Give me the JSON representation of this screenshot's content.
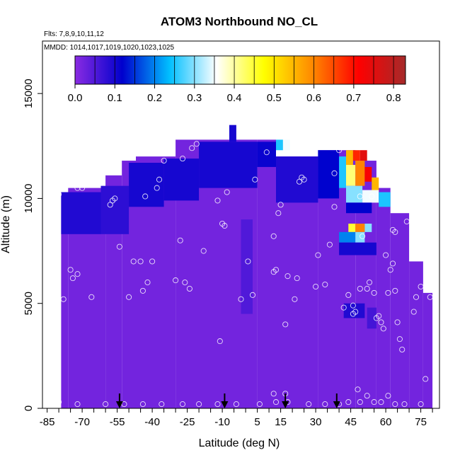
{
  "chart_data": {
    "type": "heatmap",
    "title": "ATOM3 Northbound NO_CL",
    "flights_label": "Flts: 7,8,9,10,11,12",
    "dates_label": "MMDD: 1014,1017,1019,1020,1023,1025",
    "xlabel": "Latitude (deg N)",
    "ylabel": "Altitude (m)",
    "x_ticks": [
      "-85",
      "-70",
      "-55",
      "-40",
      "-25",
      "-10",
      "5",
      "15",
      "30",
      "45",
      "60",
      "75"
    ],
    "y_ticks": [
      "0",
      "5000",
      "10000",
      "15000"
    ],
    "xlim": [
      -87,
      83
    ],
    "ylim": [
      0,
      17500
    ],
    "colorbar": {
      "ticks": [
        "0.0",
        "0.1",
        "0.2",
        "0.3",
        "0.4",
        "0.5",
        "0.6",
        "0.7",
        "0.8"
      ],
      "range": [
        0,
        0.83
      ],
      "colors": [
        "#8a2be2",
        "#0000cd",
        "#00bfff",
        "#ffffff",
        "#ffff00",
        "#ff8c00",
        "#ff0000",
        "#a52a2a"
      ]
    },
    "arrow_latitudes": [
      -54,
      -9,
      17,
      39
    ],
    "background_value": 0.02,
    "profile_columns": [
      {
        "lat": [
          -79,
          -76
        ],
        "alt_top": 10300
      },
      {
        "lat": [
          -76,
          -60
        ],
        "alt_top": 10500
      },
      {
        "lat": [
          -60,
          -53
        ],
        "alt_top": 11100
      },
      {
        "lat": [
          -53,
          -47
        ],
        "alt_top": 11800
      },
      {
        "lat": [
          -47,
          -30
        ],
        "alt_top": 12000
      },
      {
        "lat": [
          -30,
          5
        ],
        "alt_top": 12800
      },
      {
        "lat": [
          5,
          13
        ],
        "alt_top": 12800
      },
      {
        "lat": [
          13,
          31
        ],
        "alt_top": 12000
      },
      {
        "lat": [
          31,
          47
        ],
        "alt_top": 12300
      },
      {
        "lat": [
          47,
          56
        ],
        "alt_top": 11800
      },
      {
        "lat": [
          56,
          62
        ],
        "alt_top": 10500
      },
      {
        "lat": [
          62,
          70
        ],
        "alt_top": 9300
      },
      {
        "lat": [
          70,
          76
        ],
        "alt_top": 7000
      },
      {
        "lat": [
          76,
          80
        ],
        "alt_top": 5500
      }
    ],
    "enhanced_cells": [
      {
        "lat": [
          -79,
          -62
        ],
        "alt": [
          8300,
          10300
        ],
        "value": 0.09
      },
      {
        "lat": [
          -62,
          -50
        ],
        "alt": [
          8300,
          10600
        ],
        "value": 0.08
      },
      {
        "lat": [
          -50,
          -35
        ],
        "alt": [
          9600,
          11700
        ],
        "value": 0.1
      },
      {
        "lat": [
          -35,
          -20
        ],
        "alt": [
          9900,
          11900
        ],
        "value": 0.1
      },
      {
        "lat": [
          -20,
          5
        ],
        "alt": [
          10500,
          12700
        ],
        "value": 0.1
      },
      {
        "lat": [
          -7,
          -4
        ],
        "alt": [
          12700,
          13500
        ],
        "value": 0.1
      },
      {
        "lat": [
          5,
          13
        ],
        "alt": [
          11500,
          12700
        ],
        "value": 0.11
      },
      {
        "lat": [
          13,
          16
        ],
        "alt": [
          12300,
          12800
        ],
        "value": 0.25
      },
      {
        "lat": [
          16,
          19
        ],
        "alt": [
          12300,
          12800
        ],
        "value": 0.35
      },
      {
        "lat": [
          13,
          31
        ],
        "alt": [
          9800,
          12000
        ],
        "value": 0.09
      },
      {
        "lat": [
          31,
          40
        ],
        "alt": [
          10000,
          12300
        ],
        "value": 0.12
      },
      {
        "lat": [
          40,
          43
        ],
        "alt": [
          10500,
          12000
        ],
        "value": 0.25
      },
      {
        "lat": [
          43,
          46
        ],
        "alt": [
          11600,
          12300
        ],
        "value": 0.55
      },
      {
        "lat": [
          46,
          49
        ],
        "alt": [
          11800,
          12300
        ],
        "value": 0.68
      },
      {
        "lat": [
          49,
          52
        ],
        "alt": [
          11800,
          12300
        ],
        "value": 0.75
      },
      {
        "lat": [
          43,
          47
        ],
        "alt": [
          10600,
          11600
        ],
        "value": 0.42
      },
      {
        "lat": [
          47,
          51
        ],
        "alt": [
          10600,
          11800
        ],
        "value": 0.6
      },
      {
        "lat": [
          51,
          54
        ],
        "alt": [
          10800,
          11500
        ],
        "value": 0.72
      },
      {
        "lat": [
          54,
          57
        ],
        "alt": [
          10300,
          11000
        ],
        "value": 0.55
      },
      {
        "lat": [
          43,
          50
        ],
        "alt": [
          9800,
          10600
        ],
        "value": 0.3
      },
      {
        "lat": [
          50,
          57
        ],
        "alt": [
          9800,
          10400
        ],
        "value": 0.35
      },
      {
        "lat": [
          57,
          62
        ],
        "alt": [
          9600,
          10300
        ],
        "value": 0.25
      },
      {
        "lat": [
          43,
          54
        ],
        "alt": [
          9300,
          9800
        ],
        "value": 0.12
      },
      {
        "lat": [
          44,
          47
        ],
        "alt": [
          8400,
          8800
        ],
        "value": 0.45
      },
      {
        "lat": [
          47,
          51
        ],
        "alt": [
          8400,
          8800
        ],
        "value": 0.6
      },
      {
        "lat": [
          51,
          54
        ],
        "alt": [
          8400,
          8800
        ],
        "value": 0.3
      },
      {
        "lat": [
          40,
          47
        ],
        "alt": [
          7900,
          8400
        ],
        "value": 0.2
      },
      {
        "lat": [
          47,
          51
        ],
        "alt": [
          7900,
          8400
        ],
        "value": 0.3
      },
      {
        "lat": [
          40,
          56
        ],
        "alt": [
          7300,
          7900
        ],
        "value": 0.1
      },
      {
        "lat": [
          -2,
          3
        ],
        "alt": [
          4500,
          9000
        ],
        "value": 0.05
      },
      {
        "lat": [
          42,
          51
        ],
        "alt": [
          4300,
          5000
        ],
        "value": 0.09
      },
      {
        "lat": [
          52,
          56
        ],
        "alt": [
          3800,
          4800
        ],
        "value": 0.06
      }
    ],
    "sample_points": [
      [
        -80,
        10200
      ],
      [
        -82,
        7800
      ],
      [
        -75,
        6600
      ],
      [
        -74,
        6200
      ],
      [
        -72,
        6400
      ],
      [
        -78,
        5200
      ],
      [
        -66,
        5300
      ],
      [
        -72,
        10500
      ],
      [
        -70,
        10500
      ],
      [
        -58,
        9700
      ],
      [
        -57,
        9900
      ],
      [
        -56,
        10000
      ],
      [
        -54,
        7700
      ],
      [
        -50,
        5300
      ],
      [
        -48,
        7000
      ],
      [
        -45,
        7000
      ],
      [
        -44,
        5600
      ],
      [
        -42,
        6000
      ],
      [
        -40,
        7000
      ],
      [
        -43,
        10100
      ],
      [
        -38,
        10500
      ],
      [
        -37,
        10900
      ],
      [
        -35,
        11800
      ],
      [
        -30,
        6100
      ],
      [
        -28,
        8000
      ],
      [
        -27,
        11900
      ],
      [
        -23,
        12400
      ],
      [
        -21,
        12600
      ],
      [
        -26,
        6000
      ],
      [
        -24,
        5700
      ],
      [
        -18,
        7500
      ],
      [
        -10,
        8800
      ],
      [
        -9,
        8700
      ],
      [
        -8,
        10300
      ],
      [
        -11,
        3200
      ],
      [
        -12,
        9900
      ],
      [
        -2,
        5200
      ],
      [
        1,
        7000
      ],
      [
        3,
        5400
      ],
      [
        4,
        10900
      ],
      [
        9,
        12200
      ],
      [
        12,
        8200
      ],
      [
        14,
        9300
      ],
      [
        15,
        9700
      ],
      [
        13,
        6600
      ],
      [
        12,
        6500
      ],
      [
        17,
        4000
      ],
      [
        18,
        6300
      ],
      [
        20,
        13200
      ],
      [
        22,
        6200
      ],
      [
        21,
        5200
      ],
      [
        24,
        11000
      ],
      [
        25,
        10900
      ],
      [
        23,
        10800
      ],
      [
        30,
        5800
      ],
      [
        31,
        7300
      ],
      [
        34,
        5900
      ],
      [
        36,
        7800
      ],
      [
        38,
        9600
      ],
      [
        38,
        11200
      ],
      [
        40,
        12300
      ],
      [
        42,
        4800
      ],
      [
        44,
        5400
      ],
      [
        46,
        4500
      ],
      [
        47,
        4600
      ],
      [
        49,
        5700
      ],
      [
        49,
        10100
      ],
      [
        52,
        5700
      ],
      [
        53,
        6000
      ],
      [
        55,
        5500
      ],
      [
        56,
        4300
      ],
      [
        57,
        4400
      ],
      [
        58,
        4100
      ],
      [
        59,
        3800
      ],
      [
        60,
        7300
      ],
      [
        62,
        6600
      ],
      [
        63,
        6900
      ],
      [
        61,
        5500
      ],
      [
        64,
        5600
      ],
      [
        65,
        4100
      ],
      [
        66,
        3300
      ],
      [
        67,
        2800
      ],
      [
        63,
        8500
      ],
      [
        64,
        8400
      ],
      [
        69,
        8900
      ],
      [
        72,
        4600
      ],
      [
        73,
        5300
      ],
      [
        75,
        5800
      ],
      [
        77,
        1400
      ],
      [
        79,
        5300
      ],
      [
        80,
        6100
      ],
      [
        80,
        9000
      ],
      [
        55,
        12000
      ],
      [
        54,
        10100
      ],
      [
        50,
        8200
      ],
      [
        46,
        4900
      ],
      [
        48,
        900
      ],
      [
        52,
        600
      ],
      [
        49,
        300
      ],
      [
        -80,
        300
      ],
      [
        -72,
        200
      ],
      [
        -60,
        200
      ],
      [
        -52,
        200
      ],
      [
        -44,
        200
      ],
      [
        -36,
        200
      ],
      [
        -27,
        200
      ],
      [
        -20,
        200
      ],
      [
        -12,
        200
      ],
      [
        -4,
        200
      ],
      [
        6,
        200
      ],
      [
        12,
        700
      ],
      [
        13,
        300
      ],
      [
        17,
        700
      ],
      [
        18,
        300
      ],
      [
        27,
        200
      ],
      [
        34,
        200
      ],
      [
        40,
        200
      ],
      [
        44,
        300
      ],
      [
        55,
        300
      ],
      [
        58,
        300
      ],
      [
        61,
        600
      ],
      [
        64,
        200
      ],
      [
        68,
        200
      ],
      [
        75,
        200
      ]
    ]
  }
}
